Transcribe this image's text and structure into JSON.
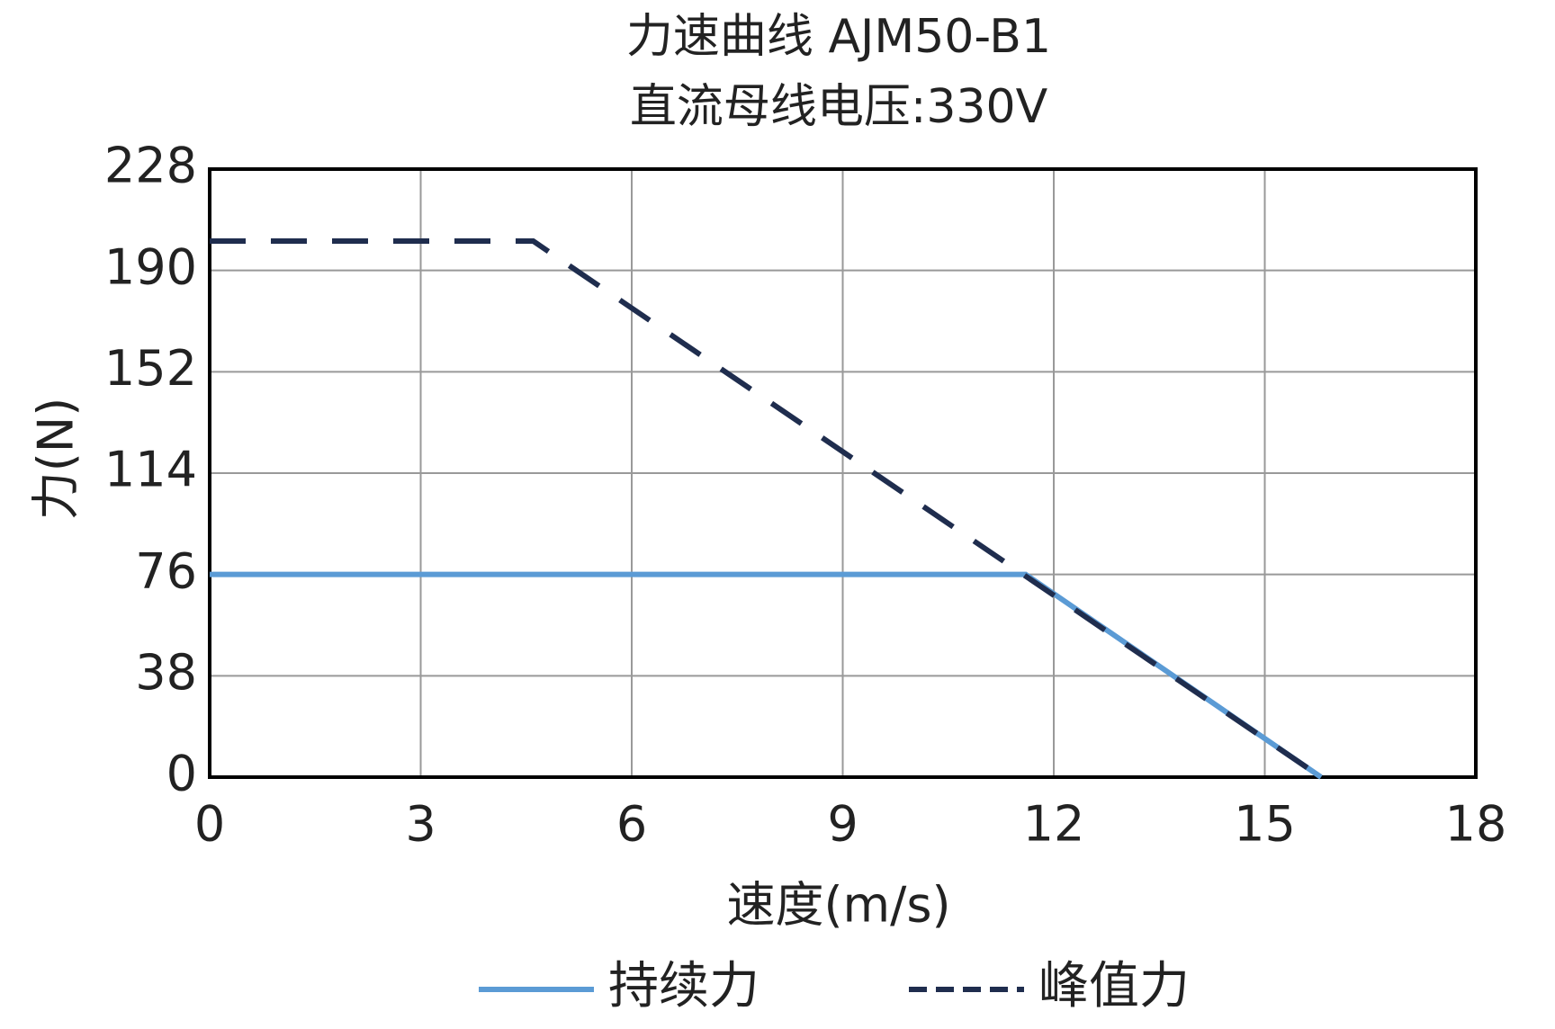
{
  "chart_data": {
    "type": "line",
    "title": "力速曲线 AJM50-B1",
    "subtitle": "直流母线电压:330V",
    "x_label": "速度(m/s)",
    "y_label": "力(N)",
    "series": [
      {
        "name": "持续力",
        "color": "#5b9bd5",
        "dash": false,
        "x": [
          0,
          11.6,
          15.8
        ],
        "values": [
          76,
          76,
          0
        ]
      },
      {
        "name": "峰值力",
        "color": "#1f2d4e",
        "dash": true,
        "x": [
          0,
          4.6,
          15.8
        ],
        "values": [
          201,
          201,
          0
        ]
      }
    ],
    "xlim": [
      0,
      18
    ],
    "xticks": [
      0,
      3,
      6,
      9,
      12,
      15,
      18
    ],
    "ylim": [
      0,
      228
    ],
    "yticks": [
      0,
      38,
      76,
      114,
      152,
      190,
      228
    ],
    "grid": true,
    "legend": "bottom"
  }
}
